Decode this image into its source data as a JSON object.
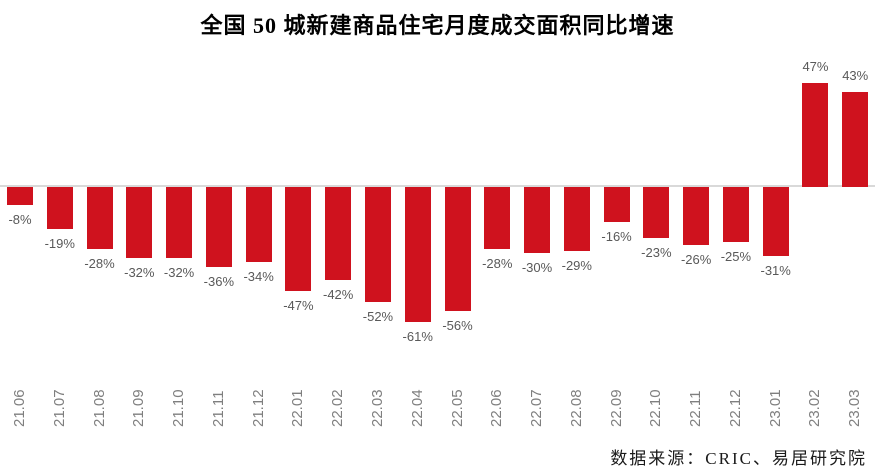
{
  "chart_data": {
    "type": "bar",
    "title": "全国 50 城新建商品住宅月度成交面积同比增速",
    "categories": [
      "21.06",
      "21.07",
      "21.08",
      "21.09",
      "21.10",
      "21.11",
      "21.12",
      "22.01",
      "22.02",
      "22.03",
      "22.04",
      "22.05",
      "22.06",
      "22.07",
      "22.08",
      "22.09",
      "22.10",
      "22.11",
      "22.12",
      "23.01",
      "23.02",
      "23.03"
    ],
    "values": [
      -8,
      -19,
      -28,
      -32,
      -32,
      -36,
      -34,
      -47,
      -42,
      -52,
      -61,
      -56,
      -28,
      -30,
      -29,
      -16,
      -23,
      -26,
      -25,
      -31,
      47,
      43
    ],
    "value_labels": [
      "-8%",
      "-19%",
      "-28%",
      "-32%",
      "-32%",
      "-36%",
      "-34%",
      "-47%",
      "-42%",
      "-52%",
      "-61%",
      "-56%",
      "-28%",
      "-30%",
      "-29%",
      "-16%",
      "-23%",
      "-26%",
      "-25%",
      "-31%",
      "47%",
      "43%"
    ],
    "xlabel": "",
    "ylabel": "",
    "ylim": [
      -70,
      55
    ],
    "grid": false,
    "legend": "none",
    "value_label_position": "outside-end",
    "bar_color": "#CF121E",
    "value_label_color": "#595959",
    "axis_label_color": "#7F7F7F",
    "baseline_color": "#D9D9D9",
    "source_note": "数据来源：CRIC、易居研究院"
  }
}
